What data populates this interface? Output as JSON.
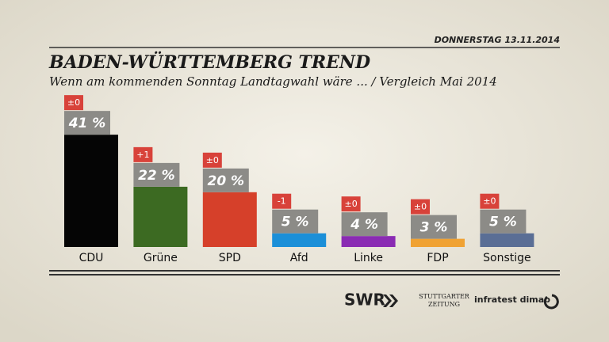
{
  "chart_data": {
    "type": "bar",
    "date": "DONNERSTAG 13.11.2014",
    "title": "BADEN-WÜRTTEMBERG TREND",
    "subtitle": "Wenn am kommenden Sonntag Landtagwahl wäre ... / Vergleich Mai 2014",
    "categories": [
      "CDU",
      "Grüne",
      "SPD",
      "Afd",
      "Linke",
      "FDP",
      "Sonstige"
    ],
    "values": [
      41,
      22,
      20,
      5,
      4,
      3,
      5
    ],
    "value_labels": [
      "41 %",
      "22 %",
      "20 %",
      "5 %",
      "4 %",
      "3 %",
      "5 %"
    ],
    "change_labels": [
      "±0",
      "+1",
      "±0",
      "-1",
      "±0",
      "±0",
      "±0"
    ],
    "colors": [
      "#050505",
      "#3c6a22",
      "#d6402a",
      "#1b8fd8",
      "#8a2bb3",
      "#f0a233",
      "#5a6e95"
    ],
    "sources": [
      "SWR",
      "STUTTGARTER",
      "ZEITUNG",
      "infratest dimap"
    ]
  }
}
